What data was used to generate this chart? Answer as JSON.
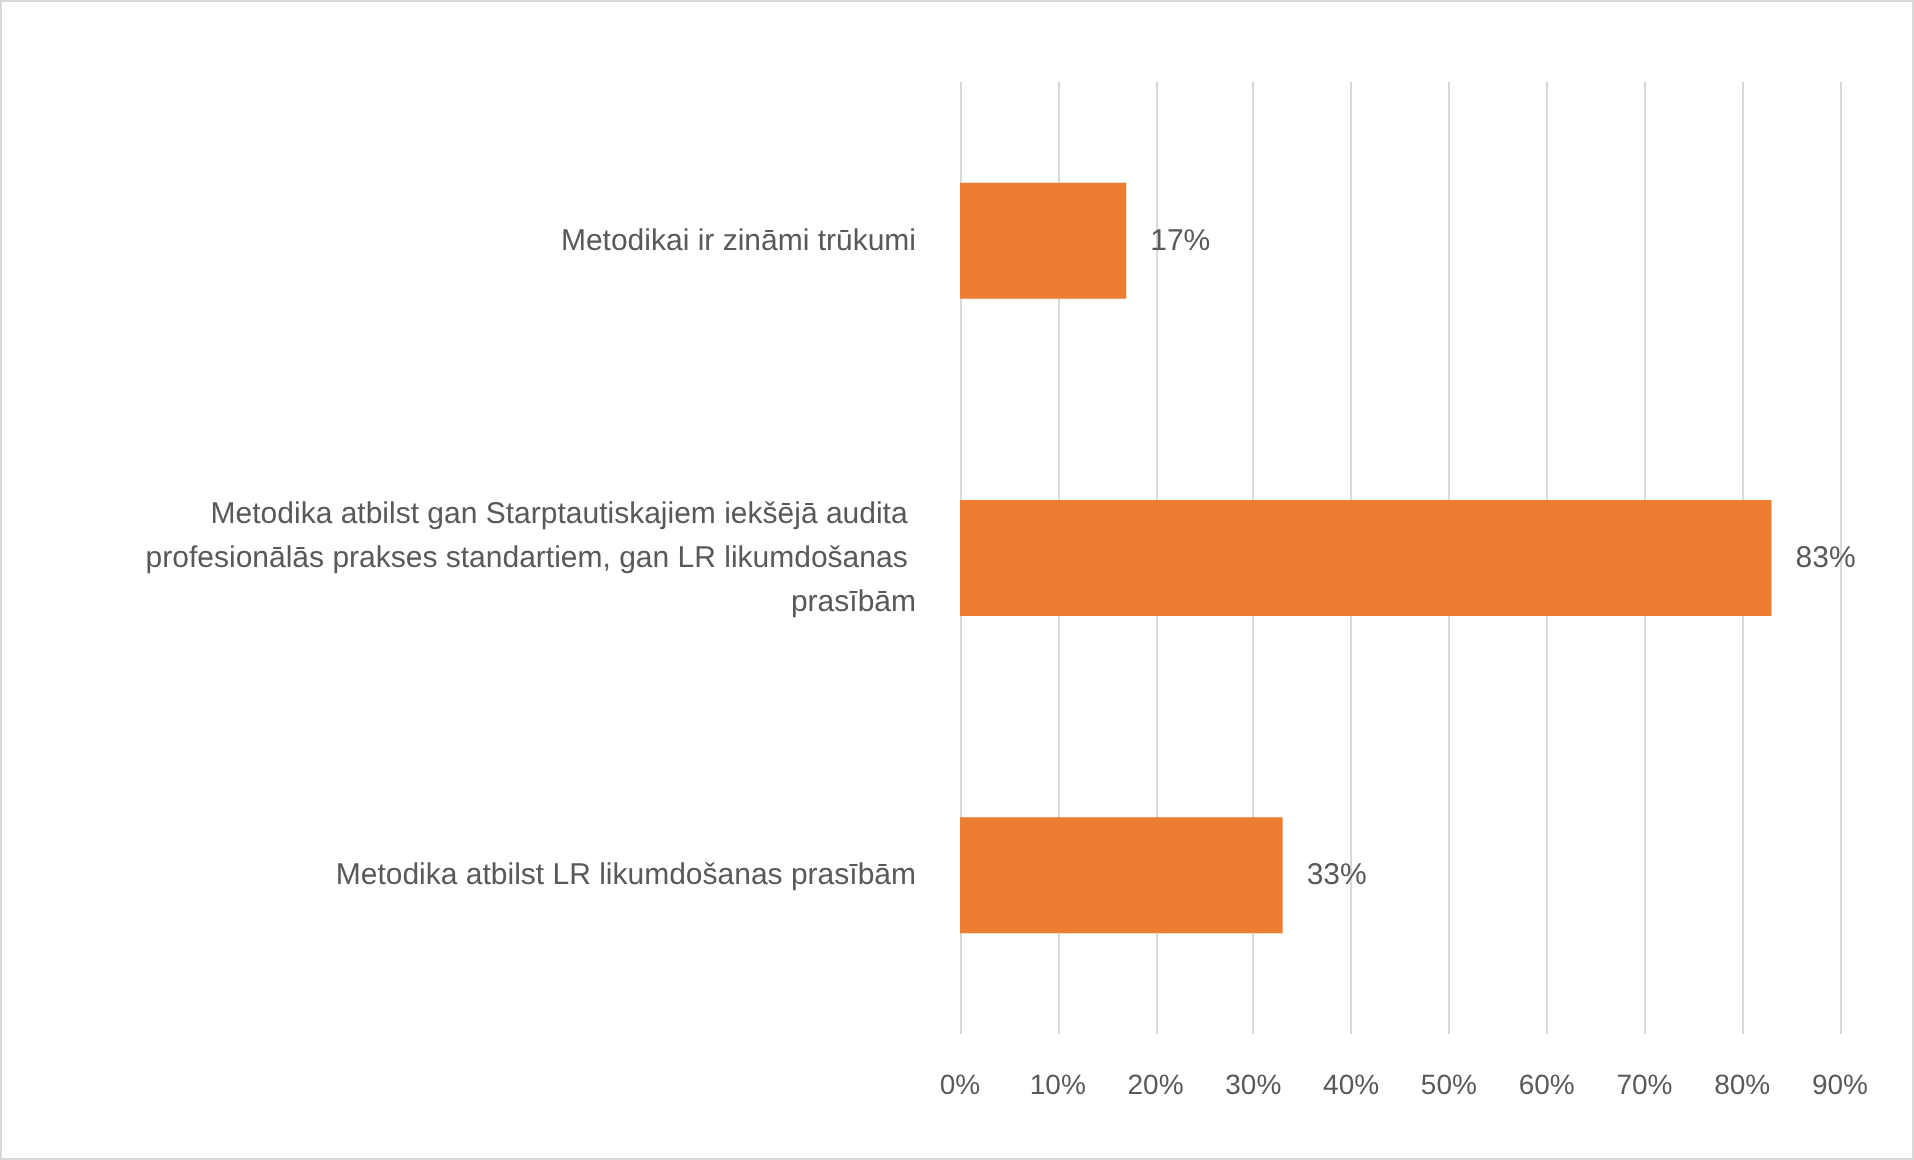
{
  "chart_data": {
    "type": "bar",
    "orientation": "horizontal",
    "categories": [
      "Metodikai ir zināmi trūkumi",
      "Metodika atbilst gan Starptautiskajiem iekšējā audita profesionālās prakses standartiem, gan LR likumdošanas prasībām",
      "Metodika atbilst LR likumdošanas prasībām"
    ],
    "values": [
      17,
      83,
      33
    ],
    "value_labels": [
      "17%",
      "83%",
      "33%"
    ],
    "color": "#ed7d31",
    "xlim": [
      0,
      90
    ],
    "xticks": [
      {
        "value": 0,
        "label": "0%"
      },
      {
        "value": 10,
        "label": "10%"
      },
      {
        "value": 20,
        "label": "20%"
      },
      {
        "value": 30,
        "label": "30%"
      },
      {
        "value": 40,
        "label": "40%"
      },
      {
        "value": 50,
        "label": "50%"
      },
      {
        "value": 60,
        "label": "60%"
      },
      {
        "value": 70,
        "label": "70%"
      },
      {
        "value": 80,
        "label": "80%"
      },
      {
        "value": 90,
        "label": "90%"
      }
    ],
    "grid": "x"
  }
}
